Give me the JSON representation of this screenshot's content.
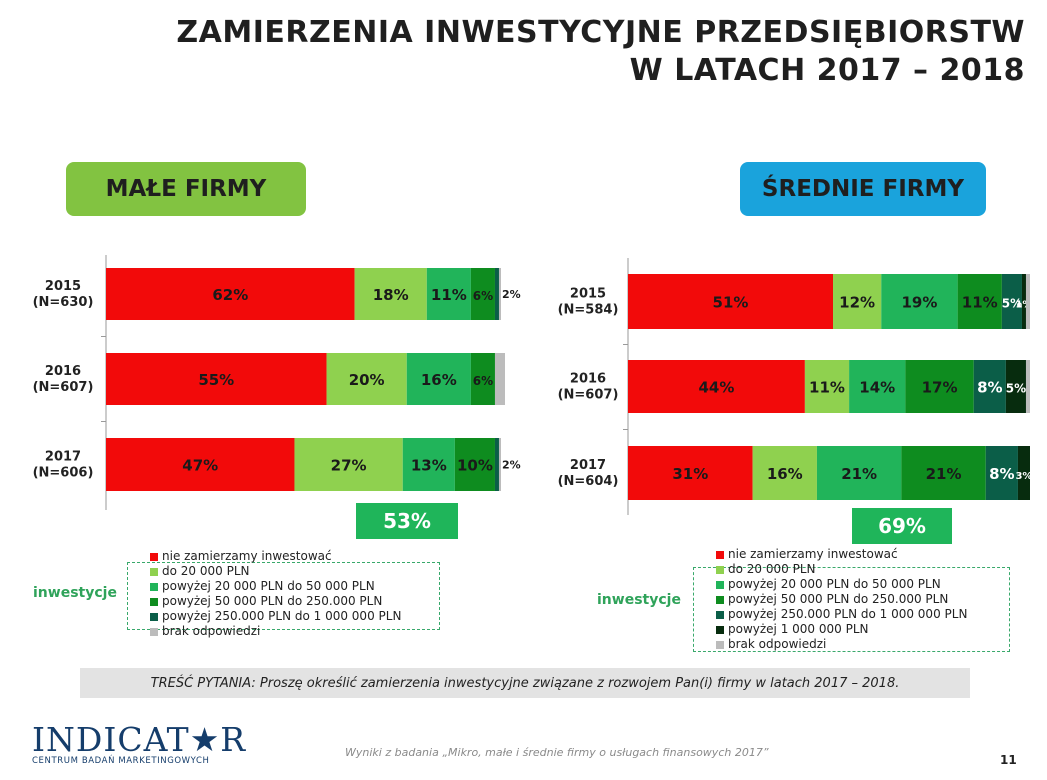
{
  "title": {
    "line1": "ZAMIERZENIA INWESTYCYJNE PRZEDSIĘBIORSTW",
    "line2": "W LATACH 2017 – 2018"
  },
  "colors": {
    "nie": "#f20a0a",
    "do20": "#8fd14f",
    "p20_50": "#21b45a",
    "p50_250": "#0e8c1f",
    "p250_1000": "#0b5e48",
    "p1000": "#072c0e",
    "brak": "#bcbcbc",
    "male_head": "#82c341",
    "srednie_head": "#1aa3dc"
  },
  "panels": {
    "male": {
      "heading": "MAŁE FIRMY",
      "invest_total": "53%"
    },
    "srednie": {
      "heading": "ŚREDNIE FIRMY",
      "invest_total": "69%"
    }
  },
  "legend_male": [
    {
      "key": "nie",
      "label": "nie zamierzamy inwestować"
    },
    {
      "key": "do20",
      "label": "do 20 000 PLN"
    },
    {
      "key": "p20_50",
      "label": "powyżej 20 000 PLN do 50 000 PLN"
    },
    {
      "key": "p50_250",
      "label": "powyżej 50 000 PLN do 250.000 PLN"
    },
    {
      "key": "p250_1000",
      "label": "powyżej 250.000 PLN do 1 000 000 PLN"
    },
    {
      "key": "brak",
      "label": "brak odpowiedzi"
    }
  ],
  "legend_srednie": [
    {
      "key": "nie",
      "label": "nie zamierzamy inwestować"
    },
    {
      "key": "do20",
      "label": "do 20 000 PLN"
    },
    {
      "key": "p20_50",
      "label": "powyżej 20 000 PLN do 50 000 PLN"
    },
    {
      "key": "p50_250",
      "label": "powyżej 50 000 PLN do 250.000 PLN"
    },
    {
      "key": "p250_1000",
      "label": "powyżej 250.000 PLN do 1 000 000 PLN"
    },
    {
      "key": "p1000",
      "label": "powyżej 1 000 000 PLN"
    },
    {
      "key": "brak",
      "label": "brak odpowiedzi"
    }
  ],
  "inwestycje_label": "inwestycje",
  "question": "TREŚĆ PYTANIA: Proszę określić zamierzenia inwestycyjne związane z rozwojem Pan(i) firmy w latach 2017 – 2018.",
  "footer": "Wyniki z badania „Mikro, małe i średnie firmy o usługach finansowych 2017”",
  "page_number": "11",
  "logo": {
    "word": "INDICAT★R",
    "subtitle": "CENTRUM BADAŃ MARKETINGOWYCH"
  },
  "chart_data": [
    {
      "type": "bar",
      "orientation": "horizontal-stacked",
      "title": "MAŁE FIRMY",
      "categories": [
        "2015",
        "2016",
        "2017"
      ],
      "category_labels": [
        [
          "2015",
          "(N=630)"
        ],
        [
          "2016",
          "(N=607)"
        ],
        [
          "2017",
          "(N=606)"
        ]
      ],
      "series": [
        {
          "name": "nie zamierzamy inwestować",
          "key": "nie",
          "values": [
            62,
            55,
            47
          ],
          "labels": [
            "62%",
            "55%",
            "47%"
          ]
        },
        {
          "name": "do 20 000 PLN",
          "key": "do20",
          "values": [
            18,
            20,
            27
          ],
          "labels": [
            "18%",
            "20%",
            "27%"
          ]
        },
        {
          "name": "powyżej 20 000 PLN do 50 000 PLN",
          "key": "p20_50",
          "values": [
            11,
            16,
            13
          ],
          "labels": [
            "11%",
            "16%",
            "13%"
          ]
        },
        {
          "name": "powyżej 50 000 PLN do 250.000 PLN",
          "key": "p50_250",
          "values": [
            6,
            6,
            10
          ],
          "labels": [
            "6%",
            "6%",
            "10%"
          ]
        },
        {
          "name": "powyżej 250.000 PLN do 1 000 000 PLN",
          "key": "p250_1000",
          "values": [
            1,
            0,
            1
          ],
          "labels": [
            "",
            "",
            ""
          ]
        },
        {
          "name": "brak odpowiedzi",
          "key": "brak",
          "values": [
            0.5,
            2.5,
            0.5
          ],
          "labels": [
            "",
            "",
            ""
          ]
        }
      ],
      "outside_labels": [
        "2%",
        "",
        "2%"
      ],
      "xlim": [
        0,
        100
      ]
    },
    {
      "type": "bar",
      "orientation": "horizontal-stacked",
      "title": "ŚREDNIE FIRMY",
      "categories": [
        "2015",
        "2016",
        "2017"
      ],
      "category_labels": [
        [
          "2015",
          "(N=584)"
        ],
        [
          "2016",
          "(N=607)"
        ],
        [
          "2017",
          "(N=604)"
        ]
      ],
      "series": [
        {
          "name": "nie zamierzamy inwestować",
          "key": "nie",
          "values": [
            51,
            44,
            31
          ],
          "labels": [
            "51%",
            "44%",
            "31%"
          ]
        },
        {
          "name": "do 20 000 PLN",
          "key": "do20",
          "values": [
            12,
            11,
            16
          ],
          "labels": [
            "12%",
            "11%",
            "16%"
          ]
        },
        {
          "name": "powyżej 20 000 PLN do 50 000 PLN",
          "key": "p20_50",
          "values": [
            19,
            14,
            21
          ],
          "labels": [
            "19%",
            "14%",
            "21%"
          ]
        },
        {
          "name": "powyżej 50 000 PLN do 250.000 PLN",
          "key": "p50_250",
          "values": [
            11,
            17,
            21
          ],
          "labels": [
            "11%",
            "17%",
            "21%"
          ]
        },
        {
          "name": "powyżej 250.000 PLN do 1 000 000 PLN",
          "key": "p250_1000",
          "values": [
            5,
            8,
            8
          ],
          "labels": [
            "5%",
            "8%",
            "8%"
          ]
        },
        {
          "name": "powyżej 1 000 000 PLN",
          "key": "p1000",
          "values": [
            1,
            5,
            3
          ],
          "labels": [
            "1%",
            "5%",
            "3%"
          ]
        },
        {
          "name": "brak odpowiedzi",
          "key": "brak",
          "values": [
            1,
            1,
            0
          ],
          "labels": [
            "",
            "",
            ""
          ]
        }
      ],
      "xlim": [
        0,
        100
      ]
    }
  ]
}
